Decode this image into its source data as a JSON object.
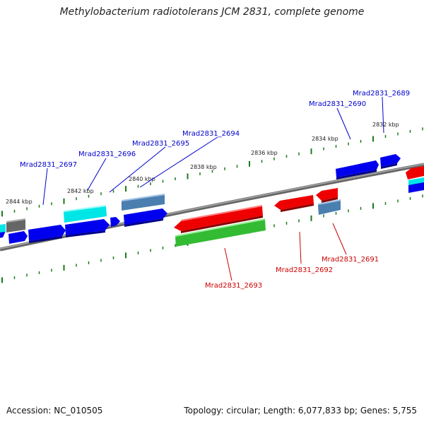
{
  "title": "Methylobacterium radiotolerans JCM 2831, complete genome",
  "footer": {
    "accession": "Accession: NC_010505",
    "stats": "Topology: circular; Length: 6,077,833 bp; Genes: 5,755"
  },
  "colors": {
    "backbone": "#808080",
    "ticks": "#1a7a1a",
    "forward_label": "#0000cc",
    "reverse_label": "#cc0000",
    "blue": "#0000ee",
    "cyan": "#00e5e5",
    "steelblue": "#4a7fb0",
    "red": "#ee0000",
    "green": "#33bb33",
    "gray": "#666666"
  },
  "kbp_labels": [
    "2832 kbp",
    "2834 kbp",
    "2836 kbp",
    "2838 kbp",
    "2840 kbp",
    "2842 kbp",
    "2844 kbp"
  ],
  "gene_labels_forward": [
    "Mrad2831_2689",
    "Mrad2831_2690",
    "Mrad2831_2694",
    "Mrad2831_2695",
    "Mrad2831_2696",
    "Mrad2831_2697"
  ],
  "gene_labels_reverse": [
    "Mrad2831_2691",
    "Mrad2831_2692",
    "Mrad2831_2693"
  ]
}
